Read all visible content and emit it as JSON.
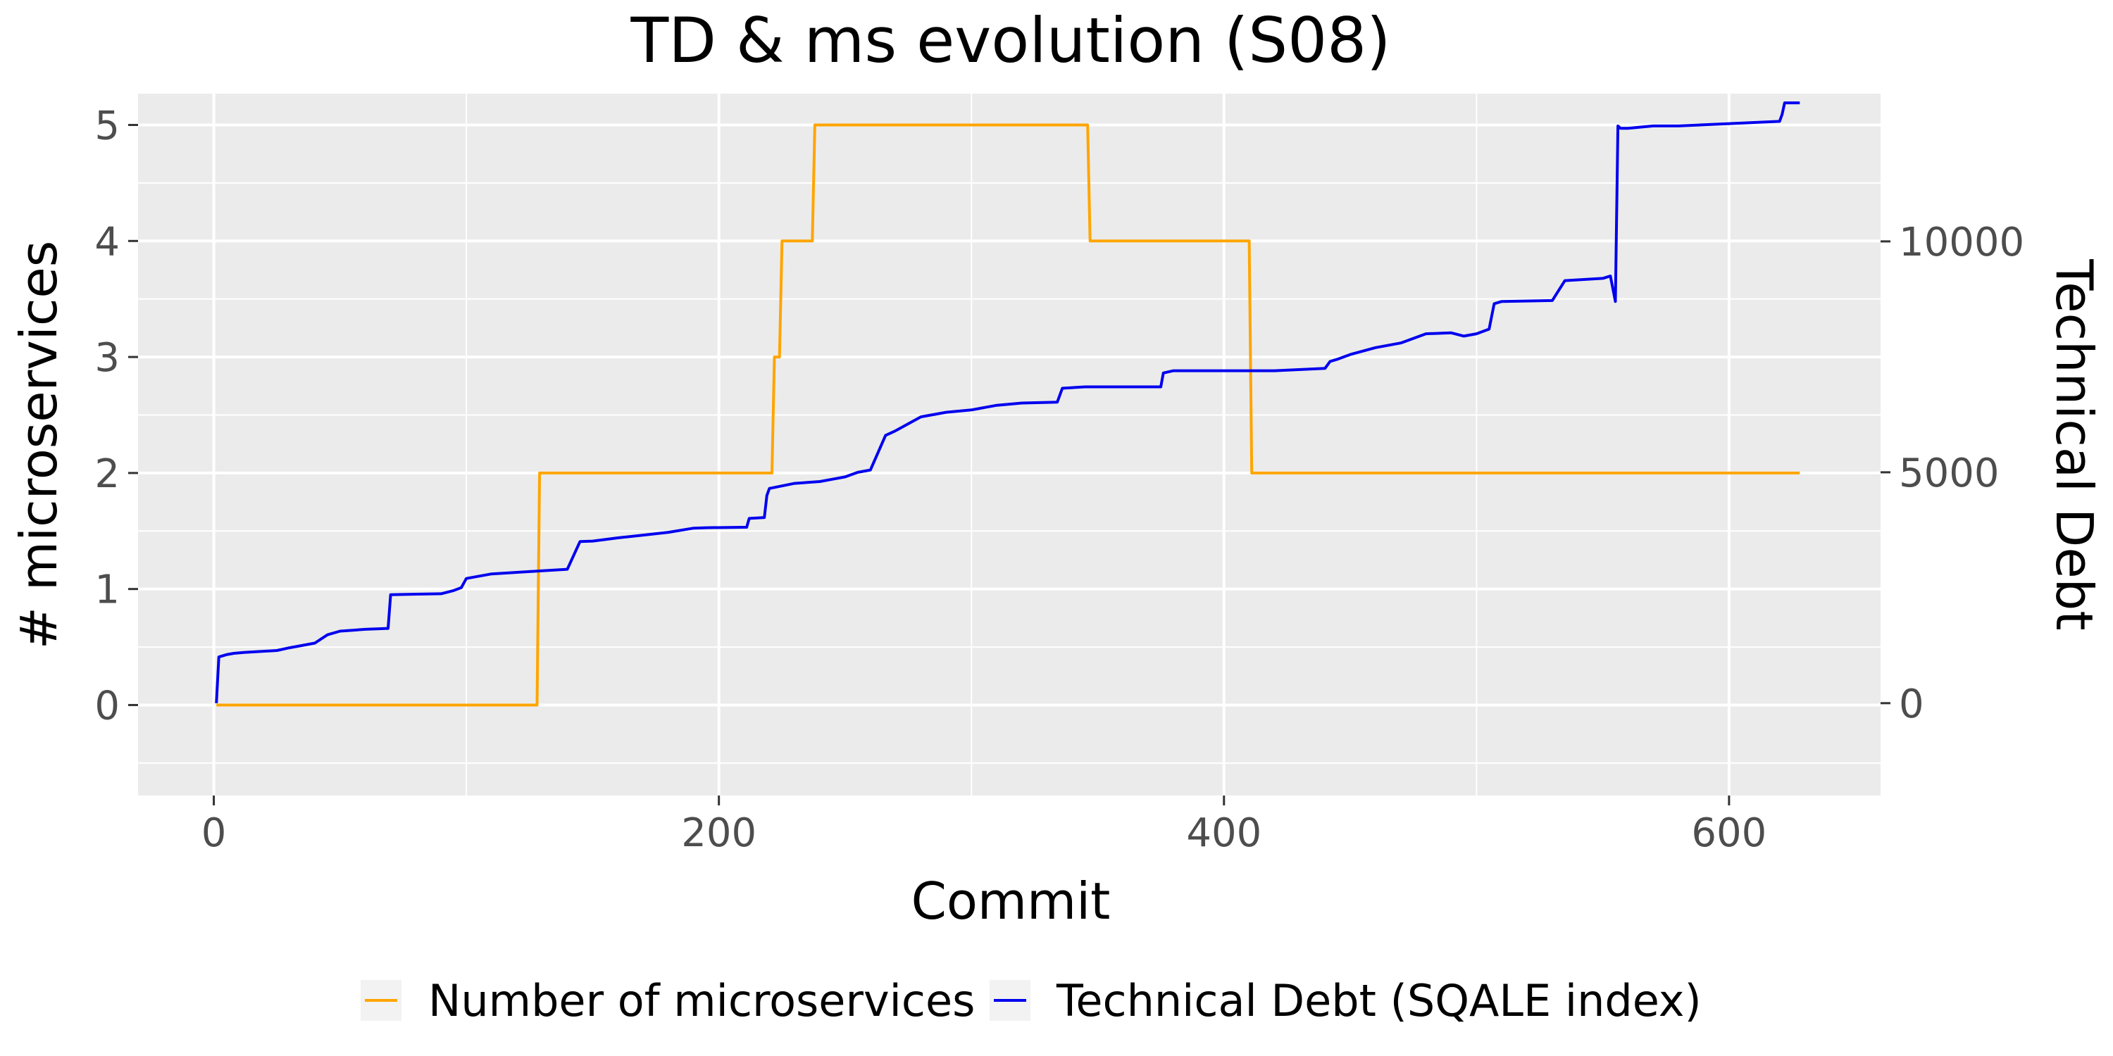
{
  "chart_data": {
    "type": "line",
    "title": "TD & ms evolution (S08)",
    "xlabel": "Commit",
    "ylabel_left": "# microservices",
    "ylabel_right": "Technical Debt",
    "xlim": [
      -30,
      660
    ],
    "ylim_left": [
      -0.78,
      5.27
    ],
    "ylim_right": [
      -2000,
      13200
    ],
    "x_ticks": [
      0,
      200,
      400,
      600
    ],
    "y_left_ticks": [
      0,
      1,
      2,
      3,
      4,
      5
    ],
    "y_right_ticks": [
      0,
      5000,
      10000
    ],
    "grid": true,
    "legend_position": "bottom",
    "series": [
      {
        "name": "Number of microservices",
        "axis": "left",
        "color": "#FFA500",
        "x": [
          1,
          128,
          129,
          221,
          222,
          224,
          225,
          227,
          228,
          237,
          238,
          346,
          347,
          410,
          411,
          628
        ],
        "y": [
          0,
          0,
          2,
          2,
          3,
          3,
          4,
          4,
          4,
          4,
          5,
          5,
          4,
          4,
          2,
          2
        ]
      },
      {
        "name": "Technical Debt (SQALE index)",
        "axis": "right",
        "color": "#0000EE",
        "x": [
          1,
          2,
          5,
          8,
          12,
          25,
          30,
          40,
          45,
          50,
          55,
          60,
          69,
          70,
          80,
          90,
          95,
          98,
          100,
          110,
          125,
          140,
          145,
          150,
          160,
          170,
          180,
          190,
          195,
          211,
          212,
          218,
          219,
          220,
          230,
          240,
          245,
          250,
          255,
          260,
          266,
          270,
          280,
          290,
          300,
          310,
          320,
          334,
          336,
          345,
          375,
          376,
          380,
          420,
          440,
          442,
          445,
          450,
          460,
          470,
          480,
          490,
          495,
          500,
          505,
          507,
          510,
          530,
          535,
          550,
          553,
          555,
          556,
          557,
          560,
          570,
          580,
          600,
          620,
          621,
          622,
          628
        ],
        "y": [
          0,
          1000,
          1050,
          1080,
          1100,
          1140,
          1200,
          1300,
          1480,
          1560,
          1580,
          1600,
          1620,
          2350,
          2360,
          2370,
          2440,
          2500,
          2700,
          2800,
          2850,
          2900,
          3500,
          3510,
          3580,
          3640,
          3700,
          3790,
          3800,
          3810,
          4000,
          4020,
          4500,
          4650,
          4760,
          4800,
          4850,
          4900,
          5000,
          5050,
          5800,
          5900,
          6200,
          6300,
          6350,
          6450,
          6500,
          6520,
          6820,
          6850,
          6850,
          7150,
          7200,
          7200,
          7250,
          7400,
          7450,
          7550,
          7700,
          7800,
          8000,
          8020,
          7950,
          8000,
          8100,
          8650,
          8700,
          8720,
          9150,
          9200,
          9250,
          8700,
          12500,
          12450,
          12450,
          12500,
          12500,
          12550,
          12600,
          12750,
          13000,
          13000
        ]
      }
    ]
  }
}
